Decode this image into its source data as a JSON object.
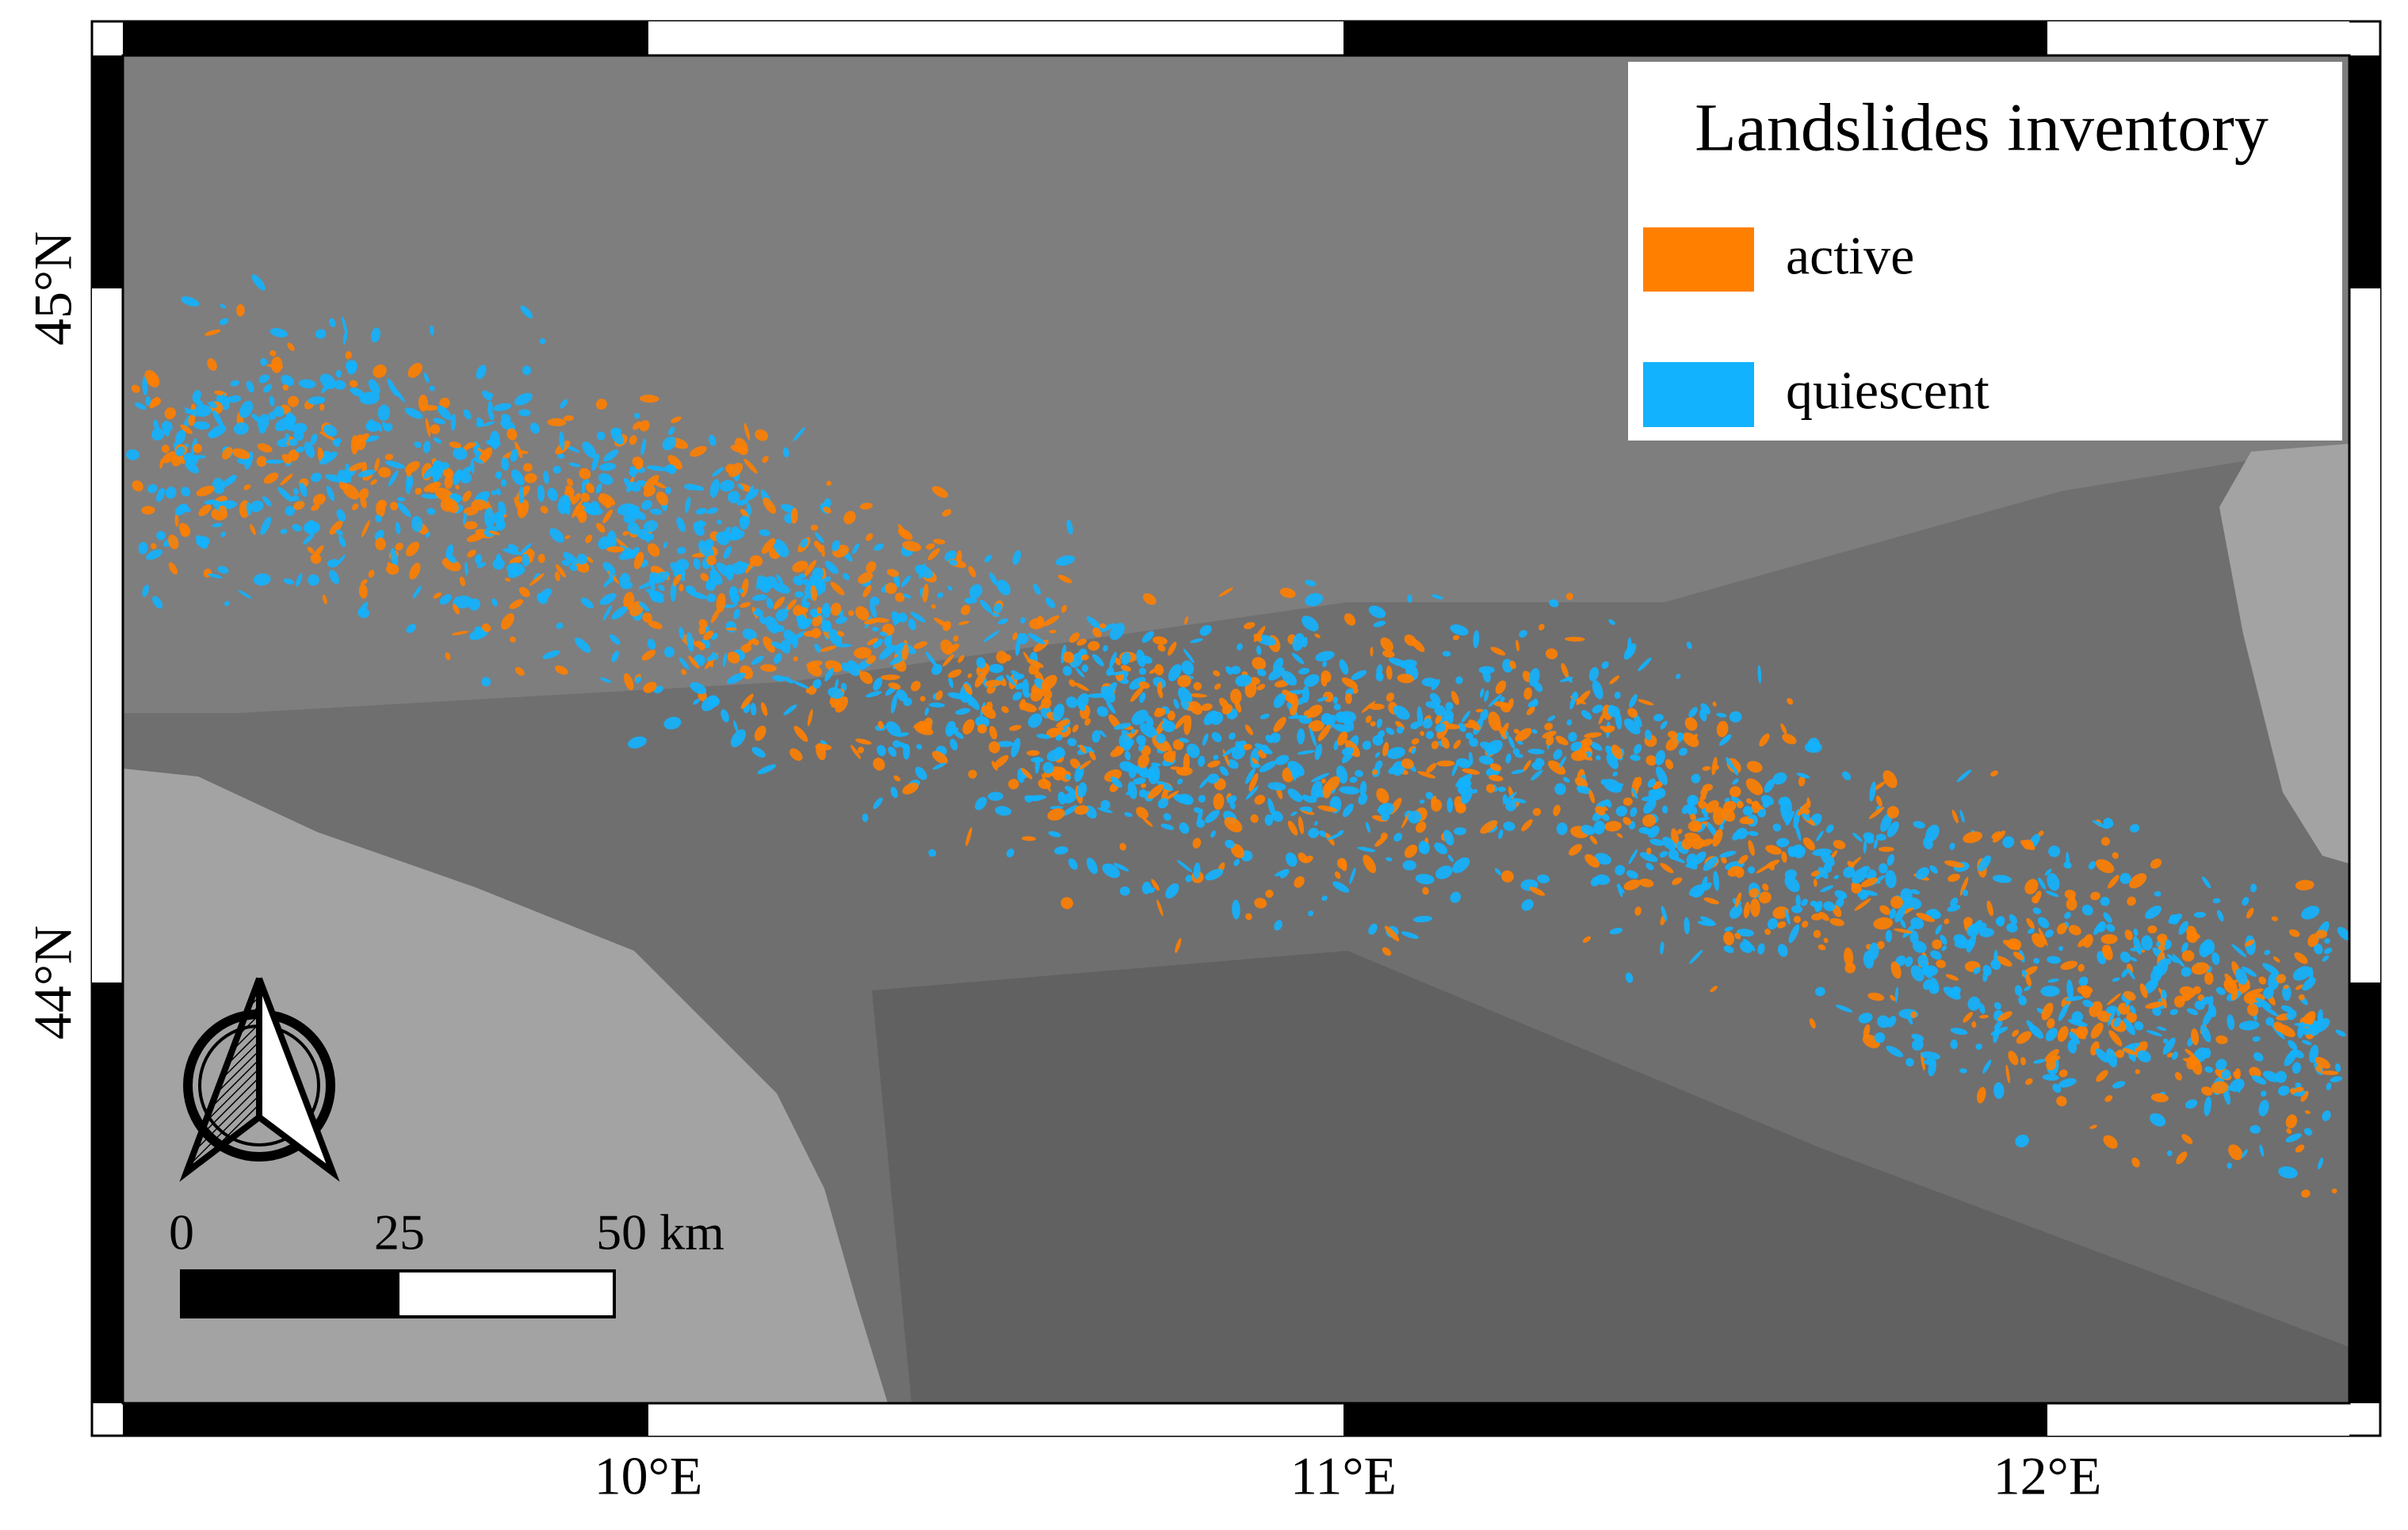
{
  "map": {
    "legend": {
      "title": "Landslides inventory",
      "items": [
        {
          "label": "active",
          "color": "#ff8000"
        },
        {
          "label": "quiescent",
          "color": "#12b2ff"
        }
      ]
    },
    "lat_labels": [
      "45°N",
      "44°N"
    ],
    "lon_labels": [
      "10°E",
      "11°E",
      "12°E"
    ],
    "scale_bar": {
      "labels": [
        "0",
        "25",
        "50 km"
      ]
    }
  }
}
